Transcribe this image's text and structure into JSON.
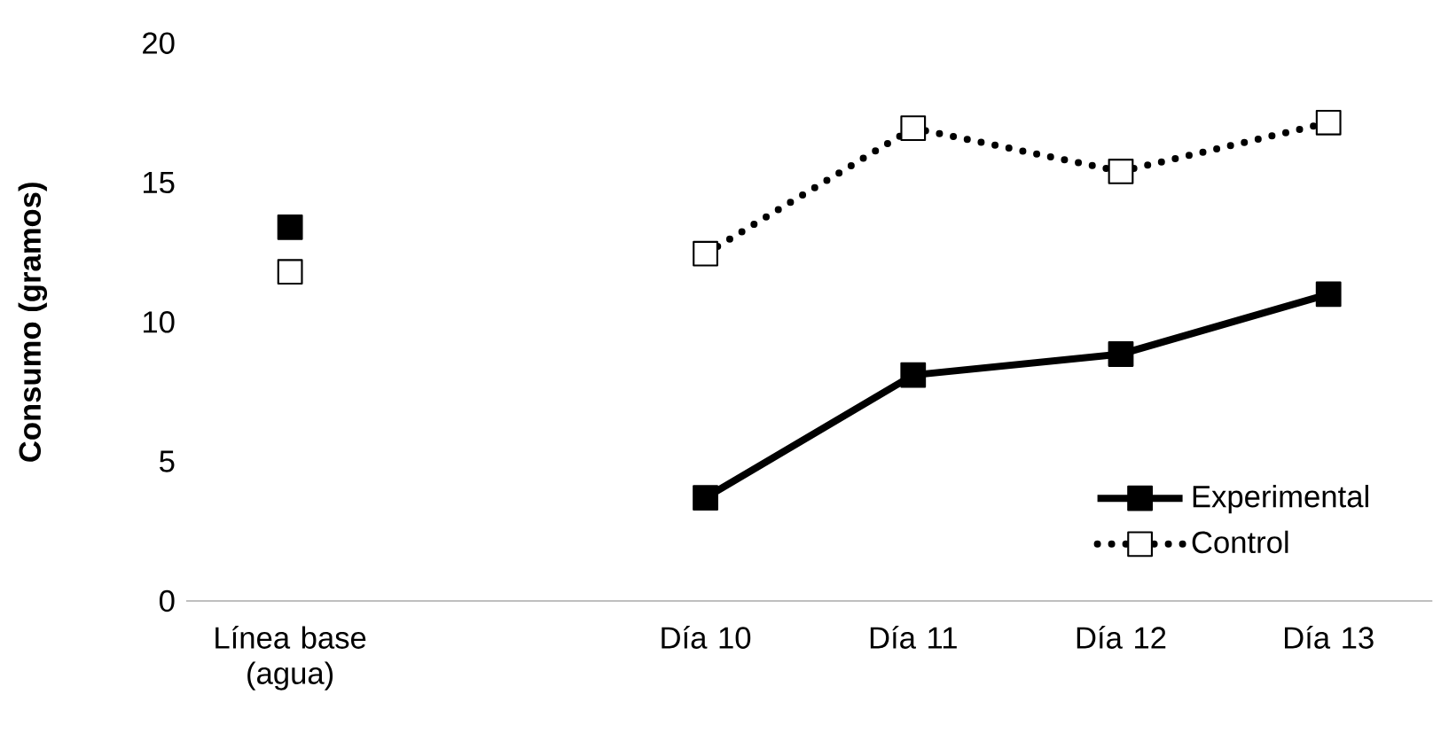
{
  "chart_data": {
    "type": "line",
    "ylabel": "Consumo (gramos)",
    "categories": [
      "Línea base (agua)",
      null,
      "Día 10",
      "Día 11",
      "Día 12",
      "Día 13"
    ],
    "series": [
      {
        "name": "Experimental",
        "color": "#000000",
        "line_style": "solid",
        "values": [
          13.4,
          null,
          3.7,
          8.1,
          8.85,
          11.0
        ]
      },
      {
        "name": "Control",
        "color": "#000000",
        "line_style": "dotted",
        "values": [
          11.8,
          null,
          12.45,
          16.95,
          15.4,
          17.15
        ]
      }
    ],
    "ylim": [
      0,
      20
    ],
    "yticks": [
      0,
      5,
      10,
      15,
      20
    ],
    "marker": "square",
    "legend": "bottom right",
    "grid": false
  }
}
